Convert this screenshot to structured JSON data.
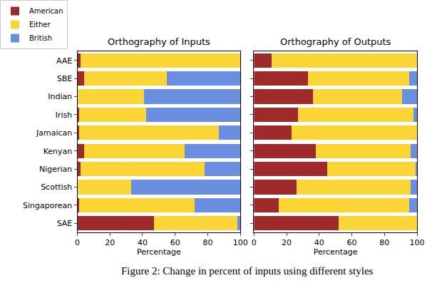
{
  "chart_data": [
    {
      "type": "bar",
      "orientation": "horizontal",
      "stacked": true,
      "title": "Orthography of Inputs",
      "xlabel": "Percentage",
      "categories": [
        "AAE",
        "SBE",
        "Indian",
        "Irish",
        "Jamaican",
        "Kenyan",
        "Nigerian",
        "Scottish",
        "Singaporean",
        "SAE"
      ],
      "series": [
        {
          "name": "American",
          "color": "#9e2a2b",
          "values": [
            2,
            4,
            0,
            1,
            1,
            4,
            2,
            0,
            1,
            47
          ]
        },
        {
          "name": "Either",
          "color": "#fbd535",
          "values": [
            98,
            51,
            41,
            41,
            86,
            62,
            76,
            33,
            71,
            51
          ]
        },
        {
          "name": "British",
          "color": "#6a8fe0",
          "values": [
            0,
            45,
            59,
            58,
            13,
            34,
            22,
            67,
            28,
            2
          ]
        }
      ],
      "xlim": [
        0,
        100
      ],
      "xticks": [
        0,
        20,
        40,
        60,
        80,
        100
      ],
      "legend": "upper left"
    },
    {
      "type": "bar",
      "orientation": "horizontal",
      "stacked": true,
      "title": "Orthography of Outputs",
      "xlabel": "Percentage",
      "categories": [
        "AAE",
        "SBE",
        "Indian",
        "Irish",
        "Jamaican",
        "Kenyan",
        "Nigerian",
        "Scottish",
        "Singaporean",
        "SAE"
      ],
      "series": [
        {
          "name": "American",
          "color": "#9e2a2b",
          "values": [
            11,
            33,
            36,
            27,
            23,
            38,
            45,
            26,
            15,
            52
          ]
        },
        {
          "name": "Either",
          "color": "#fbd535",
          "values": [
            89,
            62,
            55,
            71,
            77,
            58,
            54,
            70,
            80,
            48
          ]
        },
        {
          "name": "British",
          "color": "#6a8fe0",
          "values": [
            0,
            5,
            9,
            2,
            0,
            4,
            1,
            4,
            5,
            0
          ]
        }
      ],
      "xlim": [
        0,
        100
      ],
      "xticks": [
        0,
        20,
        40,
        60,
        80,
        100
      ],
      "tick_labels": "x"
    }
  ],
  "caption": "Figure 2: Change in percent of inputs using different styles"
}
